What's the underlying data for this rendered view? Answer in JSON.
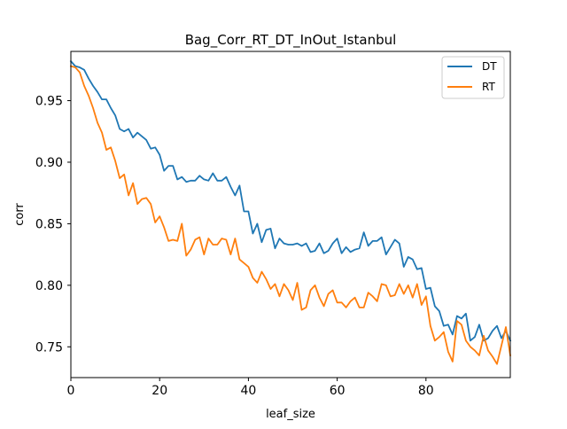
{
  "chart_data": {
    "type": "line",
    "title": "Bag_Corr_RT_DT_InOut_Istanbul",
    "xlabel": "leaf_size",
    "ylabel": "corr",
    "xlim": [
      0,
      99
    ],
    "ylim": [
      0.725,
      0.99
    ],
    "xticks": [
      0,
      20,
      40,
      60,
      80
    ],
    "yticks": [
      0.75,
      0.8,
      0.85,
      0.9,
      0.95
    ],
    "xtick_labels": [
      "0",
      "20",
      "40",
      "60",
      "80"
    ],
    "ytick_labels": [
      "0.75",
      "0.80",
      "0.85",
      "0.90",
      "0.95"
    ],
    "grid": false,
    "legend_position": "upper-right",
    "x": [
      0,
      1,
      2,
      3,
      4,
      5,
      6,
      7,
      8,
      9,
      10,
      11,
      12,
      13,
      14,
      15,
      16,
      17,
      18,
      19,
      20,
      21,
      22,
      23,
      24,
      25,
      26,
      27,
      28,
      29,
      30,
      31,
      32,
      33,
      34,
      35,
      36,
      37,
      38,
      39,
      40,
      41,
      42,
      43,
      44,
      45,
      46,
      47,
      48,
      49,
      50,
      51,
      52,
      53,
      54,
      55,
      56,
      57,
      58,
      59,
      60,
      61,
      62,
      63,
      64,
      65,
      66,
      67,
      68,
      69,
      70,
      71,
      72,
      73,
      74,
      75,
      76,
      77,
      78,
      79,
      80,
      81,
      82,
      83,
      84,
      85,
      86,
      87,
      88,
      89,
      90,
      91,
      92,
      93,
      94,
      95,
      96,
      97,
      98,
      99
    ],
    "series": [
      {
        "name": "DT",
        "color": "#1f77b4",
        "values": [
          0.982,
          0.978,
          0.977,
          0.975,
          0.968,
          0.962,
          0.957,
          0.951,
          0.951,
          0.944,
          0.938,
          0.927,
          0.925,
          0.927,
          0.92,
          0.924,
          0.921,
          0.918,
          0.911,
          0.912,
          0.906,
          0.893,
          0.897,
          0.897,
          0.886,
          0.888,
          0.884,
          0.885,
          0.885,
          0.889,
          0.886,
          0.885,
          0.891,
          0.885,
          0.885,
          0.888,
          0.88,
          0.873,
          0.881,
          0.86,
          0.86,
          0.842,
          0.85,
          0.835,
          0.845,
          0.846,
          0.83,
          0.838,
          0.834,
          0.833,
          0.833,
          0.834,
          0.832,
          0.834,
          0.827,
          0.828,
          0.834,
          0.826,
          0.828,
          0.834,
          0.838,
          0.826,
          0.831,
          0.827,
          0.829,
          0.83,
          0.843,
          0.832,
          0.836,
          0.836,
          0.839,
          0.825,
          0.831,
          0.837,
          0.834,
          0.815,
          0.823,
          0.821,
          0.813,
          0.814,
          0.797,
          0.798,
          0.783,
          0.779,
          0.767,
          0.768,
          0.76,
          0.775,
          0.773,
          0.777,
          0.755,
          0.758,
          0.768,
          0.755,
          0.757,
          0.763,
          0.767,
          0.757,
          0.763,
          0.755
        ]
      },
      {
        "name": "RT",
        "color": "#ff7f0e",
        "values": [
          0.978,
          0.977,
          0.973,
          0.962,
          0.954,
          0.944,
          0.932,
          0.924,
          0.91,
          0.912,
          0.901,
          0.887,
          0.89,
          0.873,
          0.883,
          0.866,
          0.87,
          0.871,
          0.866,
          0.851,
          0.856,
          0.847,
          0.836,
          0.837,
          0.836,
          0.85,
          0.824,
          0.829,
          0.837,
          0.839,
          0.825,
          0.838,
          0.833,
          0.833,
          0.838,
          0.837,
          0.825,
          0.838,
          0.821,
          0.818,
          0.815,
          0.806,
          0.802,
          0.811,
          0.805,
          0.797,
          0.801,
          0.791,
          0.801,
          0.796,
          0.788,
          0.802,
          0.78,
          0.782,
          0.796,
          0.8,
          0.79,
          0.783,
          0.793,
          0.796,
          0.786,
          0.786,
          0.782,
          0.787,
          0.79,
          0.782,
          0.782,
          0.794,
          0.791,
          0.787,
          0.801,
          0.8,
          0.791,
          0.792,
          0.801,
          0.793,
          0.8,
          0.79,
          0.801,
          0.784,
          0.791,
          0.767,
          0.755,
          0.758,
          0.762,
          0.746,
          0.738,
          0.771,
          0.768,
          0.755,
          0.75,
          0.747,
          0.743,
          0.759,
          0.747,
          0.742,
          0.736,
          0.751,
          0.766,
          0.743
        ]
      }
    ]
  }
}
